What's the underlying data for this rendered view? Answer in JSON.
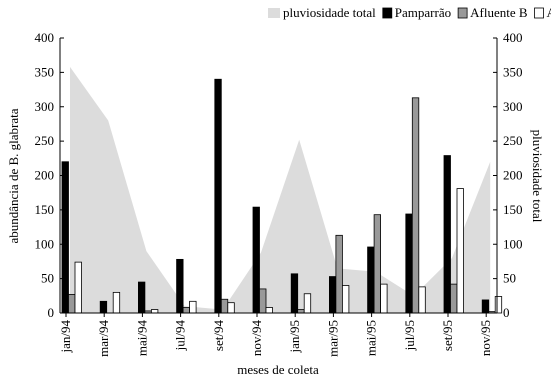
{
  "chart_data": {
    "type": "bar",
    "xlabel": "meses de coleta",
    "ylabel": "abundância de B. glabrata",
    "y2label": "pluviosidade total",
    "categories": [
      "jan/94",
      "mar/94",
      "mai/94",
      "jul/94",
      "set/94",
      "nov/94",
      "jan/95",
      "mar/95",
      "mai/95",
      "jul/95",
      "set/95",
      "nov/95"
    ],
    "ylim": [
      0,
      400
    ],
    "yticks": [
      0,
      50,
      100,
      150,
      200,
      250,
      300,
      350,
      400
    ],
    "y2lim": [
      0,
      400
    ],
    "y2ticks": [
      0,
      50,
      100,
      150,
      200,
      250,
      300,
      350,
      400
    ],
    "series": [
      {
        "name": "pluviosidade total",
        "type": "area",
        "axis": "y2",
        "color": "#dcdcdc",
        "values": [
          358,
          280,
          90,
          10,
          5,
          88,
          252,
          65,
          60,
          25,
          80,
          220
        ]
      },
      {
        "name": "Pamparrão",
        "type": "bar",
        "color": "#000000",
        "values": [
          220,
          17,
          45,
          78,
          340,
          154,
          57,
          53,
          96,
          144,
          229,
          19
        ]
      },
      {
        "name": "Afluente B",
        "type": "bar",
        "color": "#999999",
        "values": [
          27,
          0,
          3,
          8,
          20,
          35,
          5,
          113,
          143,
          313,
          42,
          2
        ]
      },
      {
        "name": "Afluente C",
        "type": "bar",
        "color": "#ffffff",
        "values": [
          74,
          30,
          5,
          17,
          15,
          8,
          28,
          40,
          42,
          38,
          181,
          24
        ]
      }
    ]
  }
}
